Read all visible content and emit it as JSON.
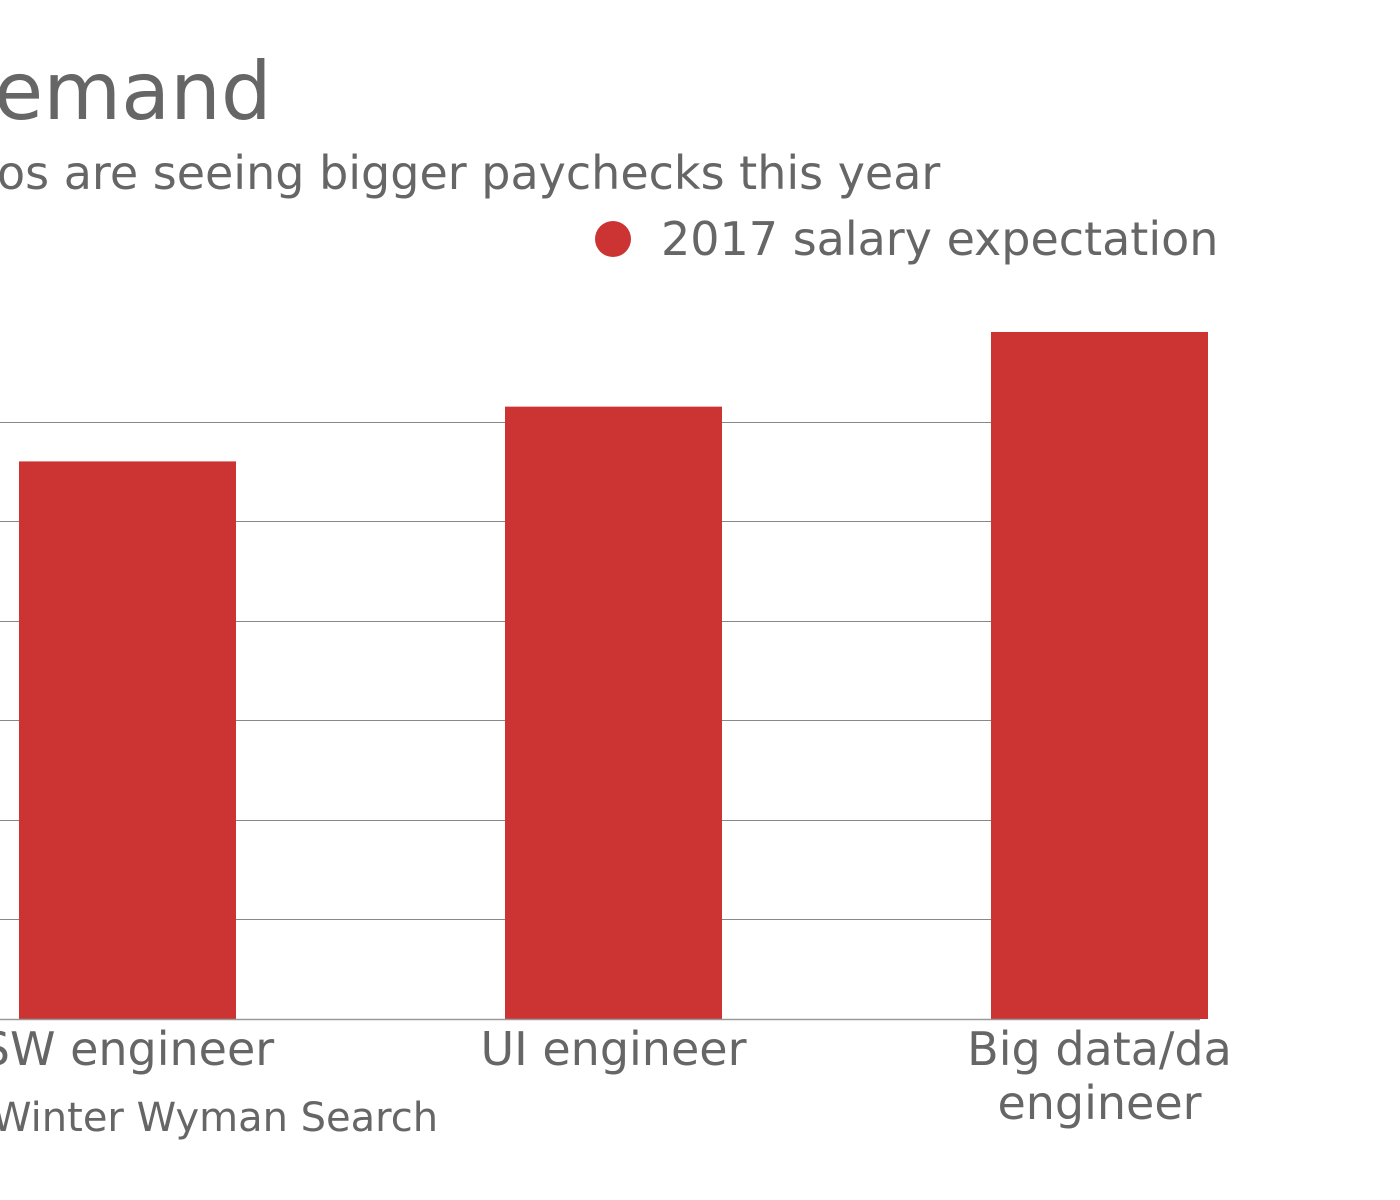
{
  "header": {
    "title": "emand",
    "subtitle": "os are seeing bigger paychecks this year"
  },
  "source": "Winter Wyman Search",
  "colors": {
    "bar": "#cc3333",
    "gridline": "#888888",
    "axis": "#999999",
    "text": "#666666"
  },
  "chart_data": {
    "type": "bar",
    "title": "emand",
    "subtitle": "os are seeing bigger paychecks this year",
    "categories": [
      "SW engineer",
      "UI engineer",
      "Big data/da\nengineer"
    ],
    "series": [
      {
        "name": "2017 salary expectation",
        "values": [
          0.56,
          0.615,
          0.69
        ]
      }
    ],
    "ylim": [
      0,
      0.7
    ],
    "grid": true,
    "legend": "top-right"
  }
}
